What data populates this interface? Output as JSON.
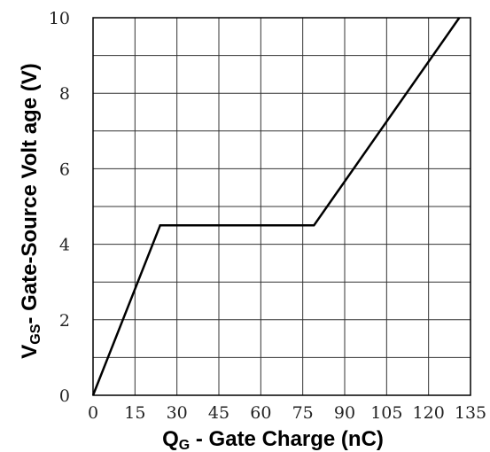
{
  "chart_data": {
    "type": "line",
    "xlabel_main": "Q",
    "xlabel_sub": "G",
    "xlabel_rest": " - Gate Charge (nC)",
    "ylabel_main": "V",
    "ylabel_sub": "GS",
    "ylabel_rest": "- Gate-Source Volt age (V)",
    "xlim": [
      0,
      135
    ],
    "ylim": [
      0,
      10
    ],
    "xticks": [
      0,
      15,
      30,
      45,
      60,
      75,
      90,
      105,
      120,
      135
    ],
    "yticks": [
      0,
      2,
      4,
      6,
      8,
      10
    ],
    "x_grid_step": 15,
    "y_grid_step": 1,
    "grid": true,
    "series": [
      {
        "x": [
          0,
          24,
          79,
          131
        ],
        "y": [
          0,
          4.5,
          4.5,
          10
        ]
      }
    ]
  }
}
